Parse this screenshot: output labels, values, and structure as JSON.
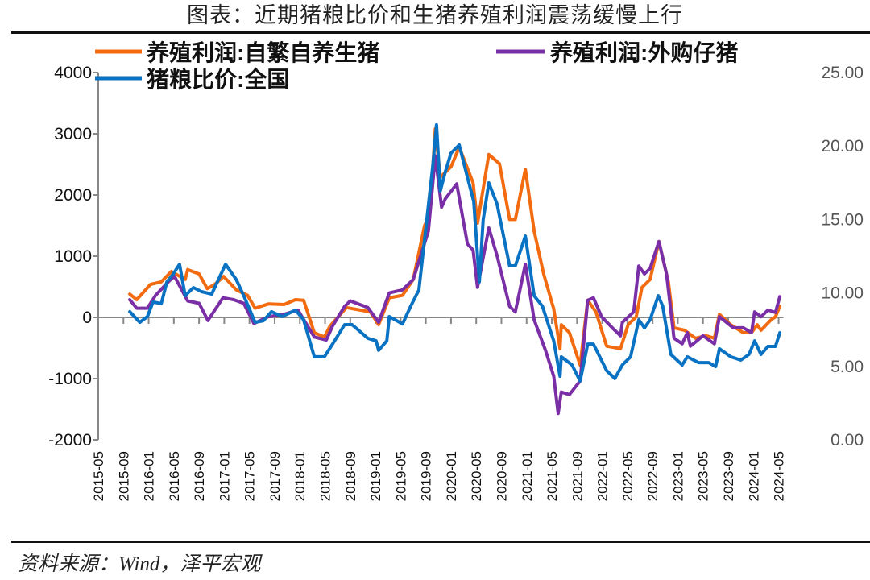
{
  "title": "图表：近期猪粮比价和生猪养殖利润震荡缓慢上行",
  "source": "资料来源：Wind，泽平宏观",
  "chart_data": {
    "type": "line",
    "x_unit": "months since 2015-05",
    "x_ticks": [
      "2015-05",
      "2015-09",
      "2016-01",
      "2016-05",
      "2016-09",
      "2017-01",
      "2017-05",
      "2017-09",
      "2018-01",
      "2018-05",
      "2018-09",
      "2019-01",
      "2019-05",
      "2019-09",
      "2020-01",
      "2020-05",
      "2020-09",
      "2021-01",
      "2021-05",
      "2021-09",
      "2022-01",
      "2022-05",
      "2022-09",
      "2023-01",
      "2023-05",
      "2023-09",
      "2024-01",
      "2024-05"
    ],
    "y_left": {
      "range": [
        -2000,
        4000
      ],
      "ticks": [
        "4000",
        "3000",
        "2000",
        "1000",
        "0",
        "-1000",
        "-2000"
      ]
    },
    "y_right": {
      "range": [
        0,
        25
      ],
      "ticks": [
        "25.00",
        "20.00",
        "15.00",
        "10.00",
        "5.00",
        "0.00"
      ]
    },
    "legend": "top",
    "series": [
      {
        "name": "养殖利润:自繁自养生猪",
        "axis": "left",
        "color": "#f26b10",
        "points": [
          [
            5.0,
            380
          ],
          [
            6.1,
            290
          ],
          [
            8.3,
            540
          ],
          [
            10.0,
            580
          ],
          [
            11.6,
            750
          ],
          [
            13.8,
            620
          ],
          [
            14.2,
            780
          ],
          [
            16.0,
            710
          ],
          [
            17.3,
            470
          ],
          [
            18.5,
            540
          ],
          [
            19.9,
            670
          ],
          [
            21.9,
            450
          ],
          [
            23.7,
            360
          ],
          [
            24.9,
            150
          ],
          [
            27.0,
            220
          ],
          [
            29.5,
            210
          ],
          [
            31.3,
            290
          ],
          [
            32.6,
            280
          ],
          [
            34.3,
            -250
          ],
          [
            35.9,
            -320
          ],
          [
            36.8,
            -140
          ],
          [
            39.4,
            160
          ],
          [
            41.6,
            120
          ],
          [
            43.2,
            90
          ],
          [
            44.5,
            -120
          ],
          [
            46.2,
            320
          ],
          [
            48.3,
            360
          ],
          [
            50.0,
            620
          ],
          [
            51.8,
            1500
          ],
          [
            52.6,
            1670
          ],
          [
            53.5,
            3080
          ],
          [
            54.3,
            2290
          ],
          [
            56.0,
            2460
          ],
          [
            57.3,
            2780
          ],
          [
            59.5,
            2200
          ],
          [
            60.2,
            1540
          ],
          [
            62.0,
            2660
          ],
          [
            63.7,
            2510
          ],
          [
            65.3,
            1600
          ],
          [
            66.2,
            1600
          ],
          [
            67.8,
            2420
          ],
          [
            69.2,
            1410
          ],
          [
            70.7,
            710
          ],
          [
            72.3,
            140
          ],
          [
            73.3,
            -510
          ],
          [
            73.5,
            -120
          ],
          [
            74.8,
            -250
          ],
          [
            76.5,
            -780
          ],
          [
            77.7,
            280
          ],
          [
            79.0,
            90
          ],
          [
            80.7,
            -470
          ],
          [
            82.9,
            -510
          ],
          [
            84.1,
            -120
          ],
          [
            85.4,
            10
          ],
          [
            86.3,
            490
          ],
          [
            87.6,
            620
          ],
          [
            89.0,
            1240
          ],
          [
            90.5,
            580
          ],
          [
            91.4,
            -170
          ],
          [
            93.1,
            -210
          ],
          [
            94.8,
            -340
          ],
          [
            96.5,
            -300
          ],
          [
            97.8,
            -340
          ],
          [
            98.6,
            50
          ],
          [
            100.4,
            -120
          ],
          [
            102.4,
            -250
          ],
          [
            103.7,
            -250
          ],
          [
            104.6,
            -120
          ],
          [
            105.2,
            -210
          ],
          [
            106.8,
            -40
          ],
          [
            107.5,
            10
          ],
          [
            108.2,
            180
          ]
        ]
      },
      {
        "name": "养殖利润:外购仔猪",
        "axis": "left",
        "color": "#7a2fa6",
        "points": [
          [
            5.0,
            290
          ],
          [
            6.1,
            150
          ],
          [
            7.8,
            150
          ],
          [
            9.1,
            360
          ],
          [
            11.3,
            600
          ],
          [
            12.1,
            670
          ],
          [
            14.2,
            270
          ],
          [
            16.0,
            230
          ],
          [
            17.4,
            -50
          ],
          [
            19.8,
            320
          ],
          [
            21.5,
            290
          ],
          [
            23.1,
            230
          ],
          [
            24.7,
            -100
          ],
          [
            27.0,
            10
          ],
          [
            29.5,
            50
          ],
          [
            31.7,
            120
          ],
          [
            34.3,
            -320
          ],
          [
            36.2,
            -370
          ],
          [
            37.2,
            -140
          ],
          [
            39.1,
            180
          ],
          [
            40.0,
            270
          ],
          [
            42.8,
            160
          ],
          [
            44.5,
            -80
          ],
          [
            46.2,
            400
          ],
          [
            48.3,
            450
          ],
          [
            50.0,
            620
          ],
          [
            52.4,
            1410
          ],
          [
            53.5,
            2640
          ],
          [
            54.5,
            1800
          ],
          [
            55.1,
            1940
          ],
          [
            56.9,
            2180
          ],
          [
            58.6,
            1200
          ],
          [
            59.5,
            1100
          ],
          [
            60.2,
            490
          ],
          [
            62.0,
            1460
          ],
          [
            63.3,
            1010
          ],
          [
            65.3,
            180
          ],
          [
            66.2,
            90
          ],
          [
            67.8,
            870
          ],
          [
            69.2,
            -40
          ],
          [
            71.0,
            -540
          ],
          [
            72.3,
            -960
          ],
          [
            73.0,
            -1570
          ],
          [
            73.5,
            -1220
          ],
          [
            74.8,
            -1260
          ],
          [
            76.1,
            -1090
          ],
          [
            76.5,
            -1040
          ],
          [
            77.7,
            280
          ],
          [
            78.6,
            320
          ],
          [
            79.9,
            10
          ],
          [
            81.6,
            -170
          ],
          [
            82.9,
            -300
          ],
          [
            83.2,
            -80
          ],
          [
            85.0,
            90
          ],
          [
            85.8,
            840
          ],
          [
            86.7,
            710
          ],
          [
            87.6,
            800
          ],
          [
            89.0,
            1240
          ],
          [
            90.2,
            710
          ],
          [
            91.4,
            -340
          ],
          [
            92.7,
            -430
          ],
          [
            93.5,
            -250
          ],
          [
            94.0,
            -470
          ],
          [
            96.0,
            -300
          ],
          [
            97.8,
            -430
          ],
          [
            98.6,
            10
          ],
          [
            100.8,
            -170
          ],
          [
            102.4,
            -170
          ],
          [
            103.7,
            -250
          ],
          [
            104.2,
            90
          ],
          [
            105.2,
            10
          ],
          [
            106.3,
            120
          ],
          [
            107.5,
            80
          ],
          [
            108.2,
            340
          ]
        ]
      },
      {
        "name": "猪粮比价:全国",
        "axis": "right",
        "color": "#0a72c2",
        "points": [
          [
            5.0,
            8.72
          ],
          [
            6.6,
            8.0
          ],
          [
            7.8,
            8.39
          ],
          [
            8.7,
            9.38
          ],
          [
            10.0,
            9.27
          ],
          [
            10.9,
            10.75
          ],
          [
            11.9,
            11.29
          ],
          [
            12.9,
            11.95
          ],
          [
            13.8,
            9.81
          ],
          [
            15.1,
            10.36
          ],
          [
            16.4,
            10.09
          ],
          [
            18.0,
            9.92
          ],
          [
            20.2,
            11.95
          ],
          [
            21.9,
            10.91
          ],
          [
            23.1,
            9.81
          ],
          [
            24.9,
            8.0
          ],
          [
            26.2,
            8.11
          ],
          [
            27.5,
            8.72
          ],
          [
            29.2,
            8.39
          ],
          [
            31.3,
            8.83
          ],
          [
            32.6,
            8.17
          ],
          [
            34.3,
            5.65
          ],
          [
            35.9,
            5.65
          ],
          [
            37.2,
            6.52
          ],
          [
            39.1,
            7.84
          ],
          [
            40.3,
            7.84
          ],
          [
            42.8,
            6.91
          ],
          [
            44.1,
            6.74
          ],
          [
            44.5,
            6.09
          ],
          [
            45.8,
            6.74
          ],
          [
            46.2,
            8.39
          ],
          [
            48.3,
            7.89
          ],
          [
            49.6,
            9.1
          ],
          [
            50.9,
            10.2
          ],
          [
            51.9,
            14.04
          ],
          [
            53.1,
            18.6
          ],
          [
            53.7,
            21.44
          ],
          [
            54.3,
            16.94
          ],
          [
            55.1,
            18.26
          ],
          [
            56.0,
            19.52
          ],
          [
            57.3,
            20.07
          ],
          [
            58.6,
            17.87
          ],
          [
            59.6,
            16.23
          ],
          [
            60.5,
            10.75
          ],
          [
            61.1,
            14.97
          ],
          [
            62.0,
            17.49
          ],
          [
            63.3,
            16.06
          ],
          [
            65.3,
            11.84
          ],
          [
            66.2,
            11.84
          ],
          [
            67.8,
            13.87
          ],
          [
            69.2,
            9.81
          ],
          [
            70.5,
            9.1
          ],
          [
            72.3,
            6.74
          ],
          [
            73.3,
            4.33
          ],
          [
            73.5,
            5.65
          ],
          [
            75.2,
            5.1
          ],
          [
            76.5,
            4.0
          ],
          [
            77.7,
            6.52
          ],
          [
            78.6,
            6.52
          ],
          [
            80.7,
            4.71
          ],
          [
            82.0,
            4.17
          ],
          [
            83.2,
            5.1
          ],
          [
            84.5,
            5.65
          ],
          [
            85.8,
            8.17
          ],
          [
            86.7,
            7.62
          ],
          [
            87.6,
            8.17
          ],
          [
            88.9,
            9.81
          ],
          [
            89.6,
            9.1
          ],
          [
            90.9,
            5.81
          ],
          [
            92.7,
            5.1
          ],
          [
            93.5,
            5.65
          ],
          [
            95.3,
            5.26
          ],
          [
            96.9,
            5.26
          ],
          [
            98.0,
            4.99
          ],
          [
            98.6,
            6.2
          ],
          [
            100.4,
            5.65
          ],
          [
            102.0,
            5.43
          ],
          [
            103.3,
            5.81
          ],
          [
            104.2,
            6.74
          ],
          [
            105.2,
            5.81
          ],
          [
            106.3,
            6.36
          ],
          [
            107.5,
            6.36
          ],
          [
            108.2,
            7.29
          ]
        ]
      }
    ]
  }
}
